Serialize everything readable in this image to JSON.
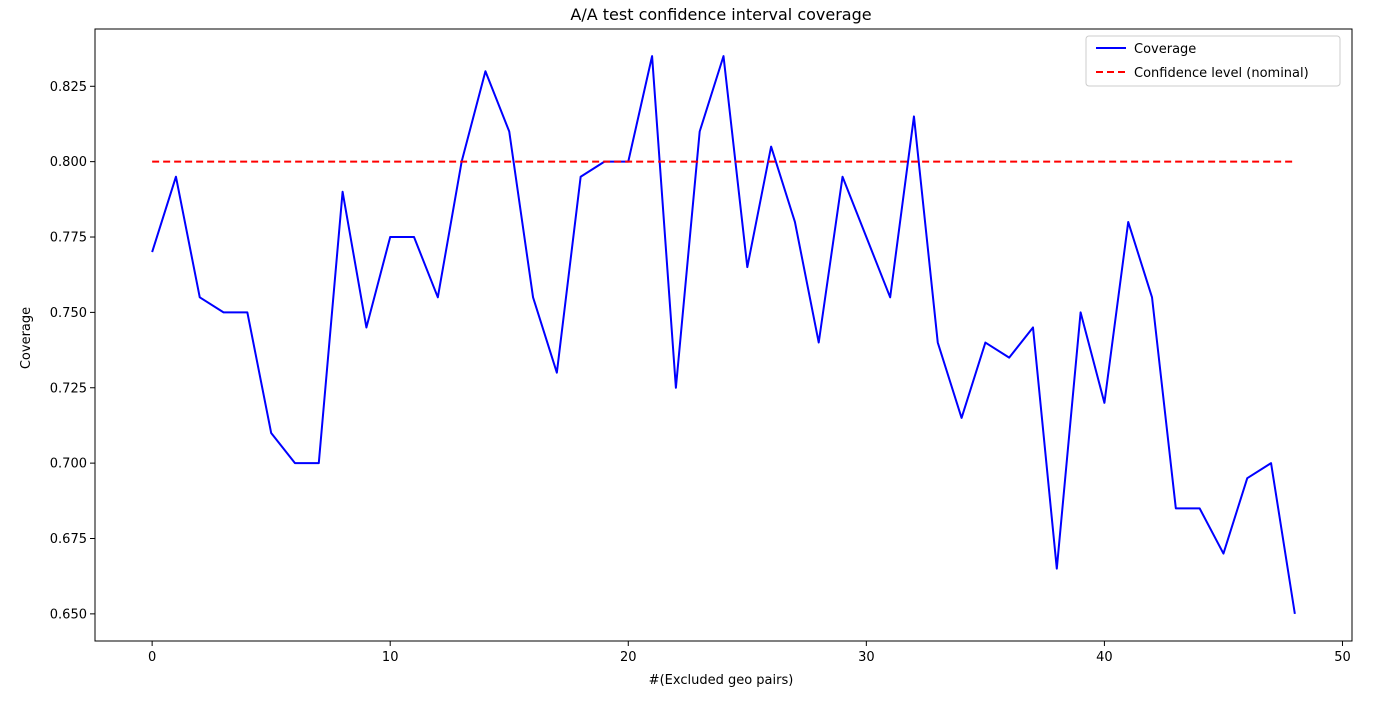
{
  "chart_data": {
    "type": "line",
    "title": "A/A test confidence interval coverage",
    "xlabel": "#(Excluded geo pairs)",
    "ylabel": "Coverage",
    "xlim": [
      -2.4,
      50.4
    ],
    "ylim": [
      0.641,
      0.844
    ],
    "xticks": [
      0,
      10,
      20,
      30,
      40,
      50
    ],
    "xtick_labels": [
      "0",
      "10",
      "20",
      "30",
      "40",
      "50"
    ],
    "yticks": [
      0.65,
      0.675,
      0.7,
      0.725,
      0.75,
      0.775,
      0.8,
      0.825
    ],
    "ytick_labels": [
      "0.650",
      "0.675",
      "0.700",
      "0.725",
      "0.750",
      "0.775",
      "0.800",
      "0.825"
    ],
    "grid": false,
    "legend_position": "top-right",
    "series": [
      {
        "name": "Coverage",
        "color": "#0000ff",
        "style": "solid",
        "x": [
          0,
          1,
          2,
          3,
          4,
          5,
          6,
          7,
          8,
          9,
          10,
          11,
          12,
          13,
          14,
          15,
          16,
          17,
          18,
          19,
          20,
          21,
          22,
          23,
          24,
          25,
          26,
          27,
          28,
          29,
          30,
          31,
          32,
          33,
          34,
          35,
          36,
          37,
          38,
          39,
          40,
          41,
          42,
          43,
          44,
          45,
          46,
          47,
          48
        ],
        "values": [
          0.77,
          0.795,
          0.755,
          0.75,
          0.75,
          0.71,
          0.7,
          0.7,
          0.79,
          0.745,
          0.775,
          0.775,
          0.755,
          0.8,
          0.83,
          0.81,
          0.755,
          0.73,
          0.795,
          0.8,
          0.8,
          0.835,
          0.725,
          0.81,
          0.835,
          0.765,
          0.805,
          0.78,
          0.74,
          0.795,
          0.775,
          0.755,
          0.815,
          0.74,
          0.715,
          0.74,
          0.735,
          0.745,
          0.665,
          0.75,
          0.72,
          0.78,
          0.755,
          0.685,
          0.685,
          0.67,
          0.695,
          0.7,
          0.65
        ]
      },
      {
        "name": "Confidence level (nominal)",
        "color": "#ff0000",
        "style": "dashed",
        "x": [
          0,
          48
        ],
        "values": [
          0.8,
          0.8
        ]
      }
    ]
  }
}
